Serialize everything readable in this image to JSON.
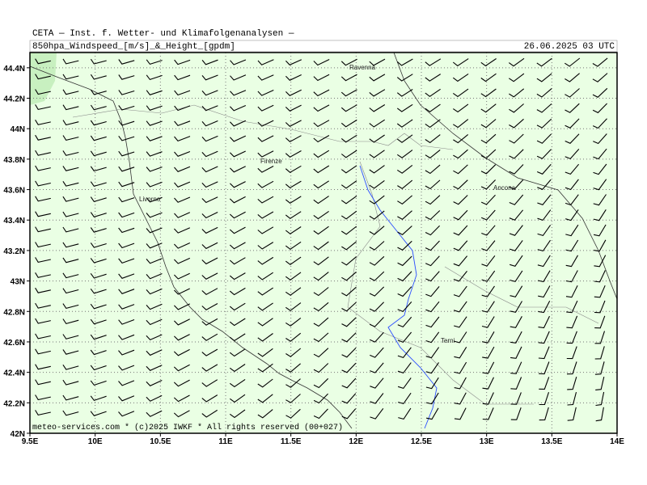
{
  "header": {
    "title": "CETA — Inst. f. Wetter- und Klimafolgenanalysen —",
    "field": "850hpa_Windspeed_[m/s]_&_Height_[gpdm]",
    "valid_time": "26.06.2025 03 UTC"
  },
  "map": {
    "xlim": [
      9.5,
      14
    ],
    "ylim": [
      42,
      44.5
    ],
    "xticks": [
      {
        "value": 9.5,
        "label": "9.5E"
      },
      {
        "value": 10,
        "label": "10E"
      },
      {
        "value": 10.5,
        "label": "10.5E"
      },
      {
        "value": 11,
        "label": "11E"
      },
      {
        "value": 11.5,
        "label": "11.5E"
      },
      {
        "value": 12,
        "label": "12E"
      },
      {
        "value": 12.5,
        "label": "12.5E"
      },
      {
        "value": 13,
        "label": "13E"
      },
      {
        "value": 13.5,
        "label": "13.5E"
      },
      {
        "value": 14,
        "label": "14E"
      }
    ],
    "yticks": [
      {
        "value": 42,
        "label": "42N"
      },
      {
        "value": 42.2,
        "label": "42.2N"
      },
      {
        "value": 42.4,
        "label": "42.4N"
      },
      {
        "value": 42.6,
        "label": "42.6N"
      },
      {
        "value": 42.8,
        "label": "42.8N"
      },
      {
        "value": 43,
        "label": "43N"
      },
      {
        "value": 43.2,
        "label": "43.2N"
      },
      {
        "value": 43.4,
        "label": "43.4N"
      },
      {
        "value": 43.6,
        "label": "43.6N"
      },
      {
        "value": 43.8,
        "label": "43.8N"
      },
      {
        "value": 44,
        "label": "44N"
      },
      {
        "value": 44.2,
        "label": "44.2N"
      },
      {
        "value": 44.4,
        "label": "44.4N"
      }
    ],
    "cities": [
      "Ravenna",
      "Firenze",
      "Livorno",
      "Ancona",
      "Terni"
    ],
    "footer": "meteo-services.com * (c)2025 IWKF * All rights reserved (00+027)"
  }
}
